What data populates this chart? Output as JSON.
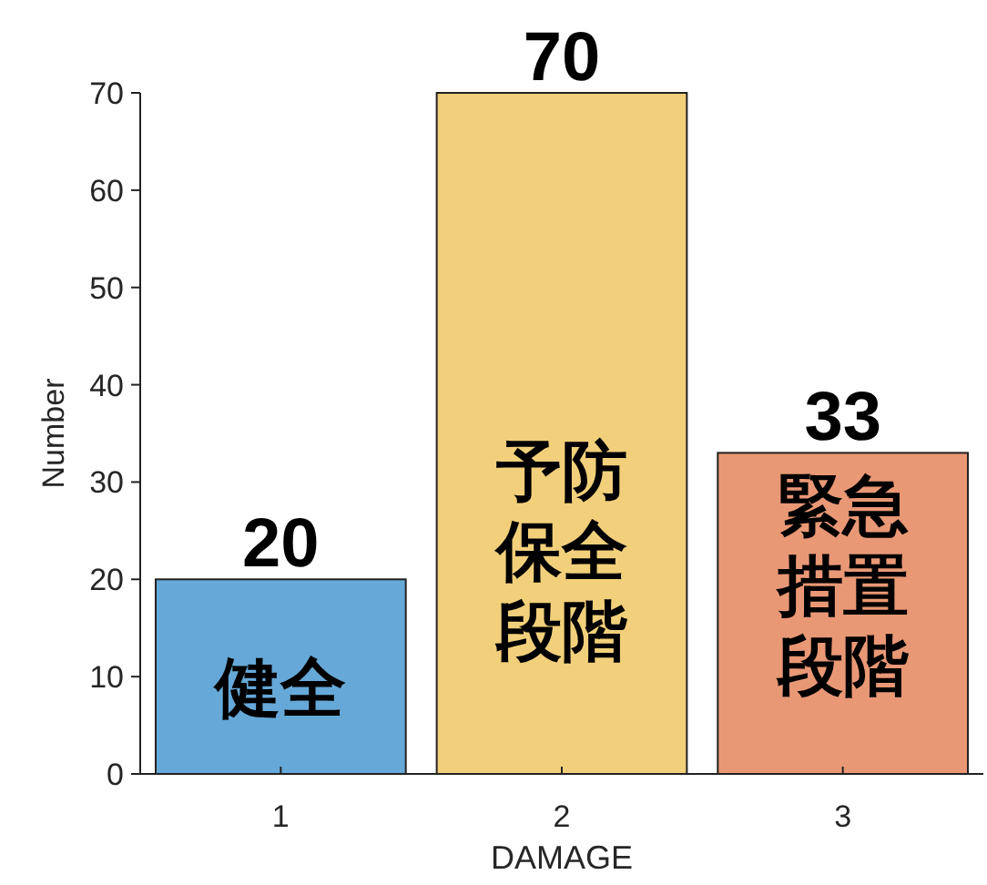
{
  "chart_data": {
    "type": "bar",
    "xlabel": "DAMAGE",
    "ylabel": "Number",
    "categories": [
      "1",
      "2",
      "3"
    ],
    "values": [
      20,
      70,
      33
    ],
    "colors": [
      "#66a9d8",
      "#f2d07b",
      "#e99875"
    ],
    "ylim": [
      0,
      70
    ],
    "yticks": [
      0,
      10,
      20,
      30,
      40,
      50,
      60,
      70
    ],
    "grid": false,
    "data_labels": true,
    "annotations": [
      "健全",
      "予防保全段階",
      "緊急措置段階"
    ]
  }
}
